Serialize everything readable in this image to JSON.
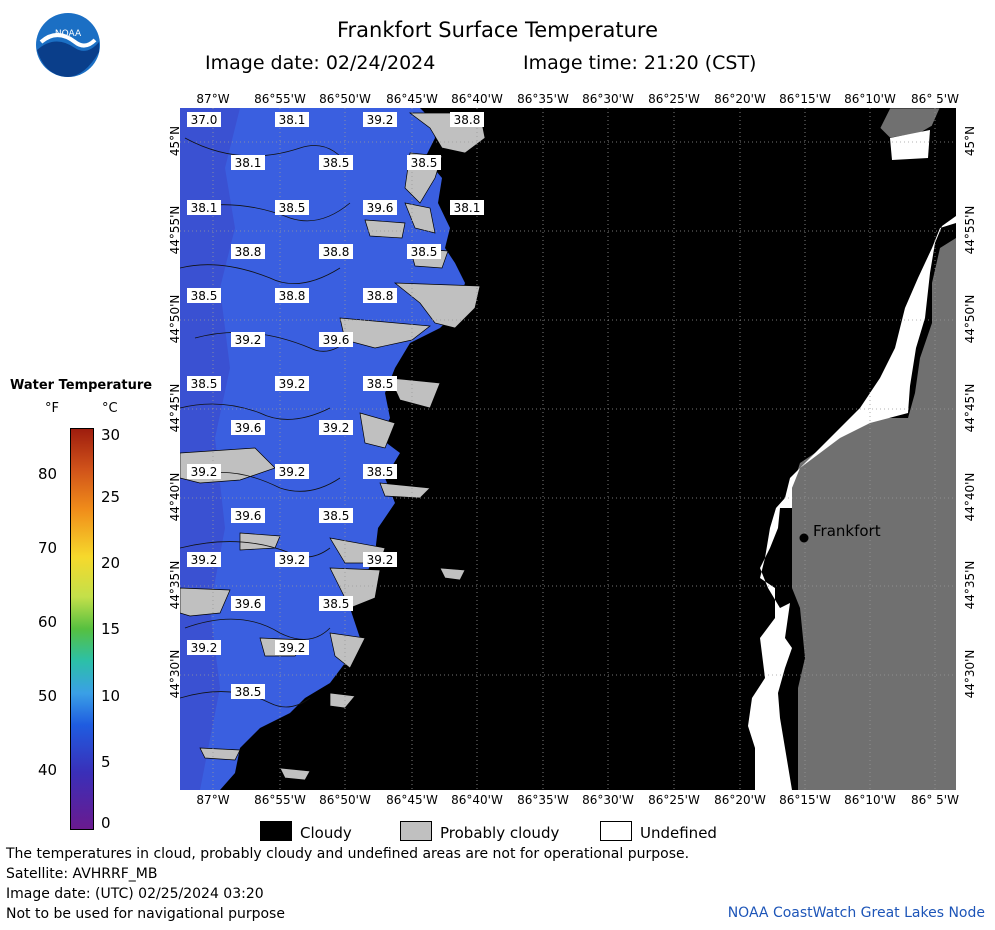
{
  "header": {
    "title": "Frankfort Surface Temperature",
    "image_date": "Image date: 02/24/2024",
    "image_time": "Image time: 21:20 (CST)"
  },
  "logo": {
    "text": "NOAA"
  },
  "map": {
    "lon_labels": [
      "87°W",
      "86°55'W",
      "86°50'W",
      "86°45'W",
      "86°40'W",
      "86°35'W",
      "86°30'W",
      "86°25'W",
      "86°20'W",
      "86°15'W",
      "86°10'W",
      "86° 5'W"
    ],
    "lat_labels": [
      "45°N",
      "44°55'N",
      "44°50'N",
      "44°45'N",
      "44°40'N",
      "44°35'N",
      "44°30'N"
    ],
    "city_label": "Frankfort",
    "temperature_labels": [
      "37.0",
      "38.1",
      "39.2",
      "38.8",
      "38.1",
      "38.5",
      "38.5",
      "38.1",
      "38.5",
      "39.6",
      "38.1",
      "38.8",
      "38.8",
      "38.5",
      "38.5",
      "38.8",
      "38.8",
      "39.2",
      "39.6",
      "38.5",
      "39.2",
      "38.5",
      "39.6",
      "39.2",
      "39.2",
      "39.2",
      "38.5",
      "39.6",
      "38.5",
      "39.2",
      "39.2",
      "39.2",
      "39.6",
      "38.5",
      "39.2",
      "39.2",
      "38.5"
    ],
    "colors": {
      "water": "#3a5fe0",
      "cloud": "#000000",
      "probably_cloudy": "#c0c0c0",
      "undefined": "#ffffff",
      "land": "#707070"
    }
  },
  "legend": {
    "title": "Water Temperature",
    "unit_f": "°F",
    "unit_c": "°C",
    "f_ticks": [
      "80",
      "70",
      "60",
      "50",
      "40"
    ],
    "c_ticks": [
      "30",
      "25",
      "20",
      "15",
      "10",
      "5",
      "0"
    ]
  },
  "key": {
    "cloudy": "Cloudy",
    "probably_cloudy": "Probably cloudy",
    "undefined": "Undefined"
  },
  "footer": {
    "disclaimer": "The temperatures in cloud, probably cloudy and undefined areas are not for operational purpose.",
    "satellite": "Satellite: AVHRRF_MB",
    "image_date_utc": "Image date: (UTC) 02/25/2024  03:20",
    "navigation": "Not to be used for navigational purpose",
    "credit": "NOAA CoastWatch Great Lakes Node"
  }
}
